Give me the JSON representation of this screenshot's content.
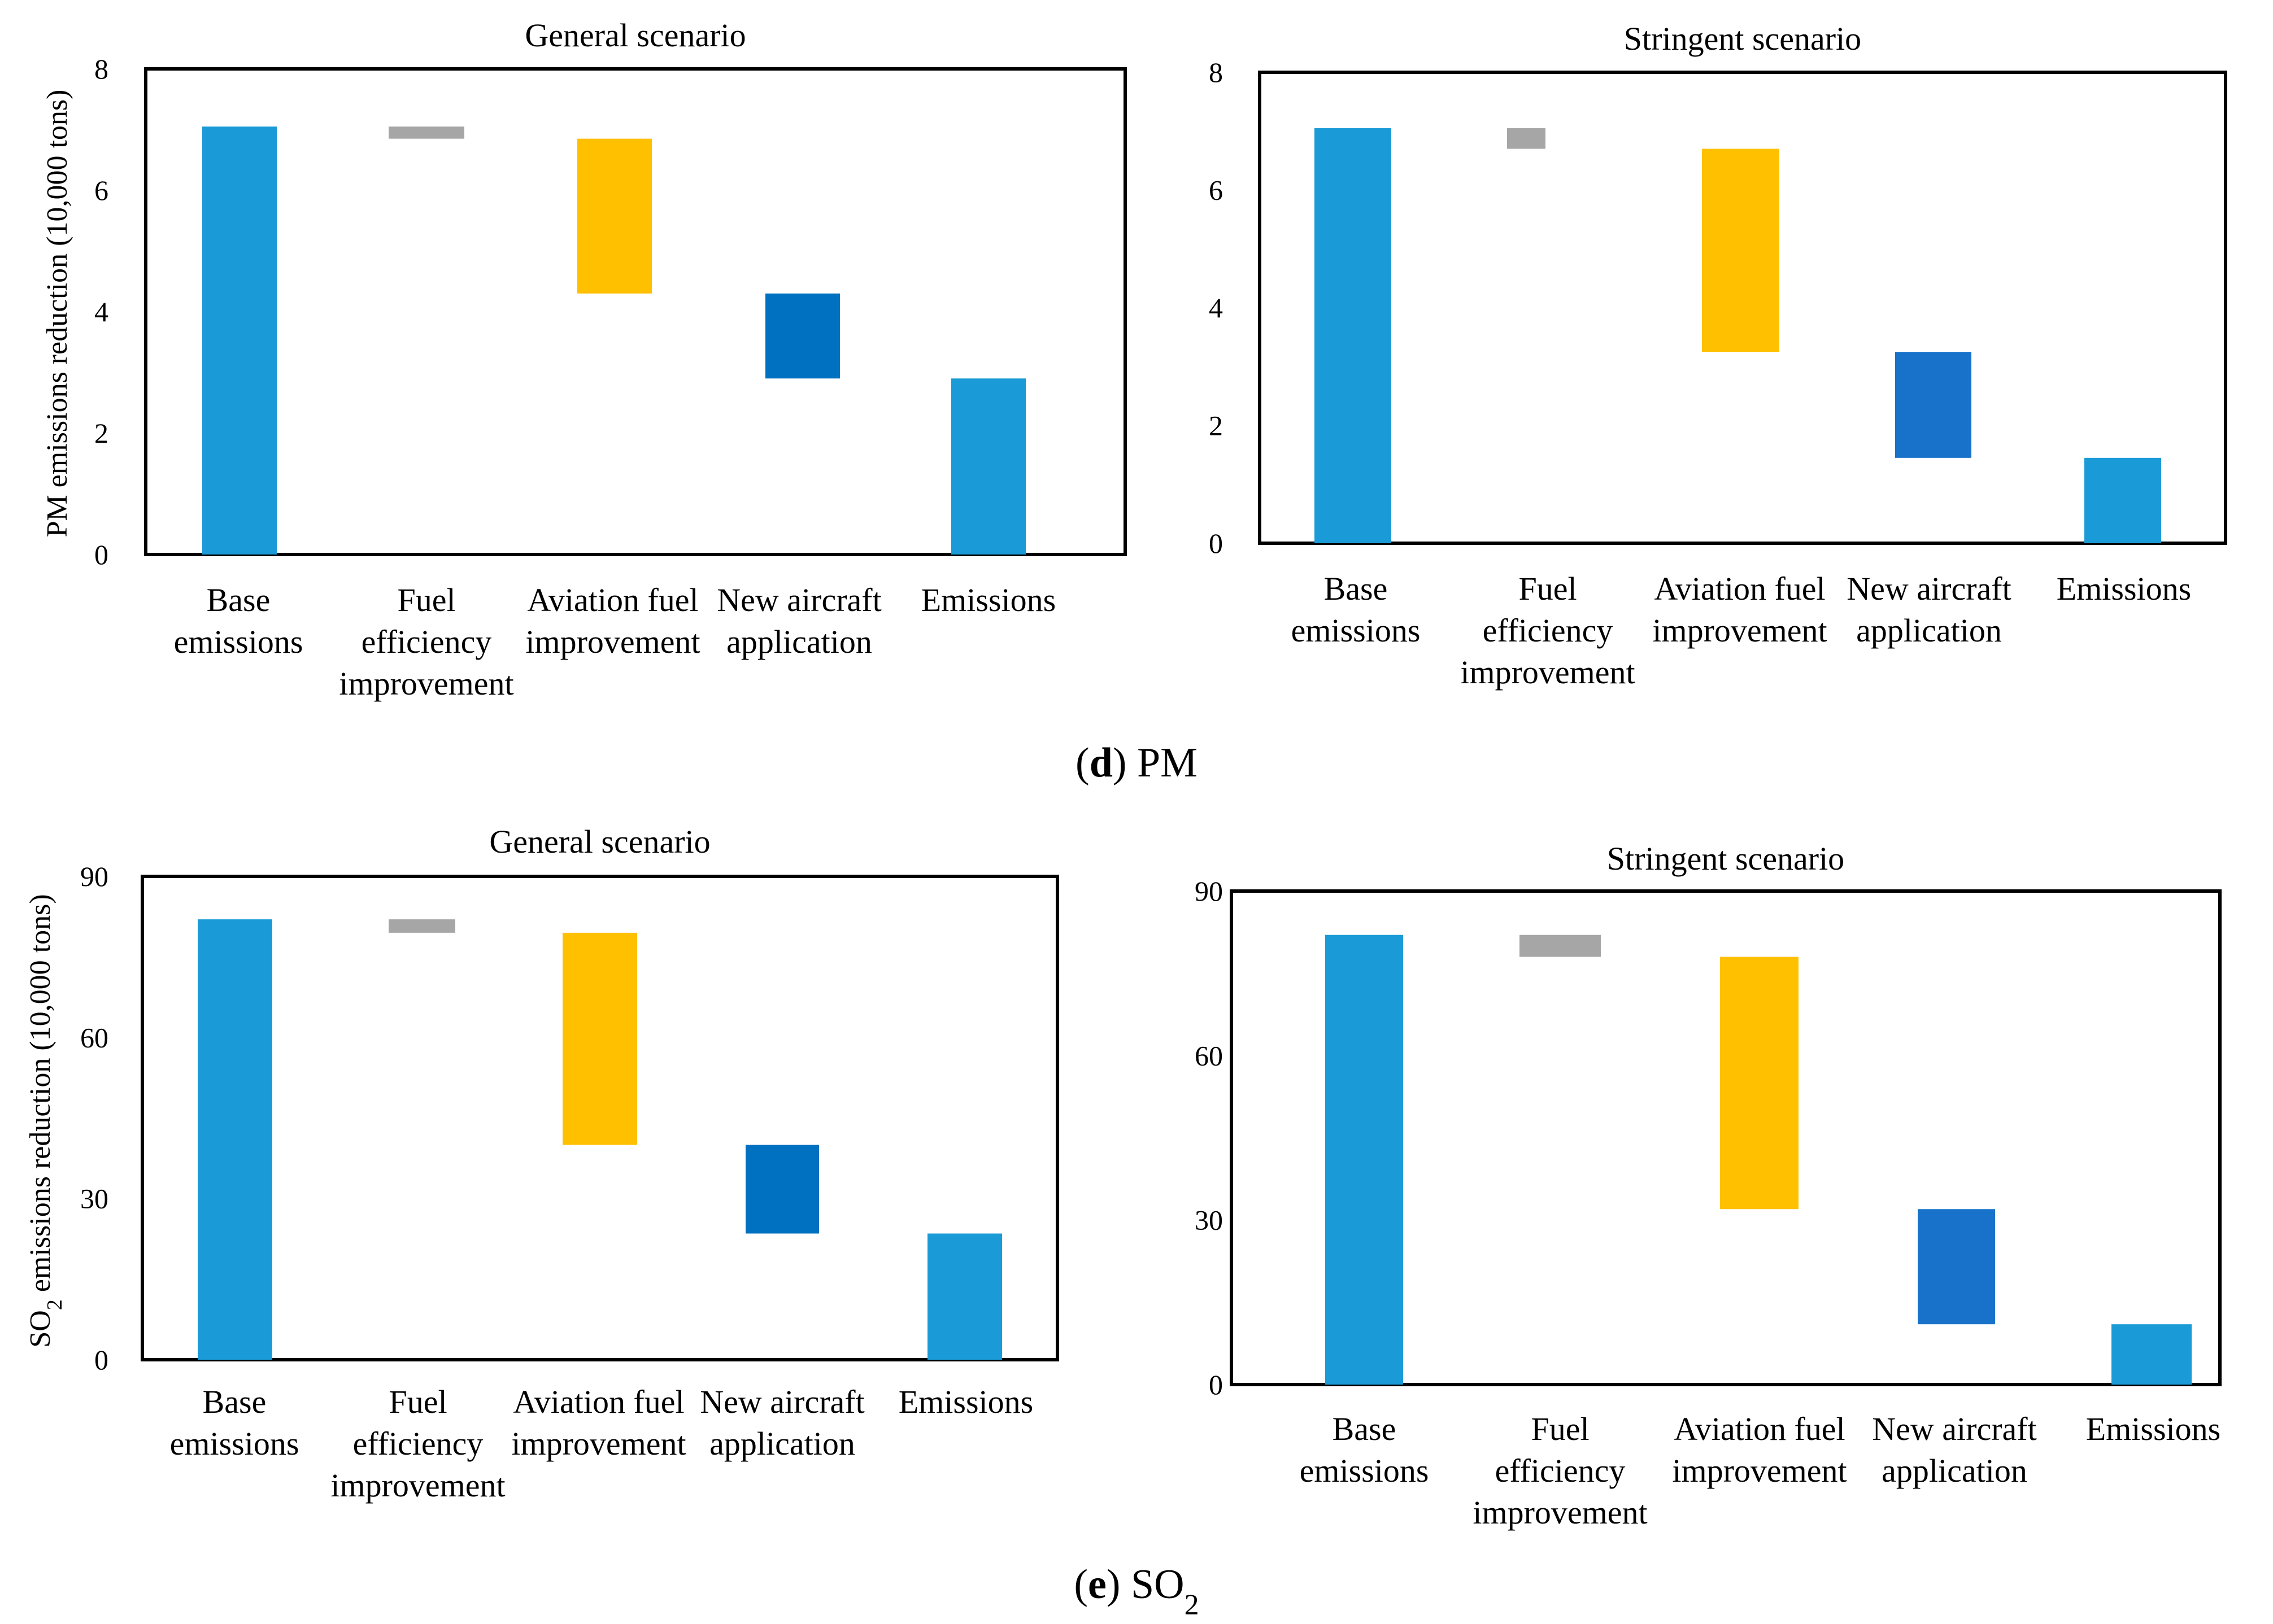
{
  "colors": {
    "base": "#1a9bd7",
    "fuel_efficiency": "#a6a6a6",
    "aviation_fuel": "#ffc000",
    "new_aircraft_general": "#0070c0",
    "new_aircraft_stringent": "#1872ca",
    "emissions": "#1a9bd7"
  },
  "captions": {
    "pm": {
      "letter": "d",
      "text": " PM"
    },
    "so2": {
      "letter": "e",
      "text": " SO",
      "sub": "2"
    }
  },
  "ylabels": {
    "pm": "PM emissions reduction (10,000 tons)",
    "so2_prefix": "SO",
    "so2_sub": "2",
    "so2_suffix": " emissions reduction (10,000 tons)"
  },
  "chart_data": [
    {
      "id": "pm_general",
      "type": "bar",
      "subtype": "waterfall",
      "title": "General scenario",
      "ylabel": "PM emissions reduction (10,000 tons)",
      "ylim": [
        0,
        8
      ],
      "yticks": [
        "0",
        "2",
        "4",
        "6",
        "8"
      ],
      "categories": [
        [
          "Base",
          "emissions"
        ],
        [
          "Fuel",
          "efficiency",
          "improvement"
        ],
        [
          "Aviation fuel",
          "improvement"
        ],
        [
          "New aircraft",
          "application"
        ],
        [
          "Emissions"
        ]
      ],
      "bars": [
        {
          "from": 0,
          "to": 7.05,
          "color": "base"
        },
        {
          "from": 6.85,
          "to": 7.05,
          "color": "fuel_efficiency"
        },
        {
          "from": 4.3,
          "to": 6.85,
          "color": "aviation_fuel"
        },
        {
          "from": 2.9,
          "to": 4.3,
          "color": "new_aircraft_general"
        },
        {
          "from": 0,
          "to": 2.9,
          "color": "emissions"
        }
      ]
    },
    {
      "id": "pm_stringent",
      "type": "bar",
      "subtype": "waterfall",
      "title": "Stringent scenario",
      "ylim": [
        0,
        8
      ],
      "yticks": [
        "0",
        "2",
        "4",
        "6",
        "8"
      ],
      "categories": [
        [
          "Base",
          "emissions"
        ],
        [
          "Fuel",
          "efficiency",
          "improvement"
        ],
        [
          "Aviation fuel",
          "improvement"
        ],
        [
          "New aircraft",
          "application"
        ],
        [
          "Emissions"
        ]
      ],
      "bars": [
        {
          "from": 0,
          "to": 7.05,
          "color": "base"
        },
        {
          "from": 6.7,
          "to": 7.05,
          "color": "fuel_efficiency"
        },
        {
          "from": 3.25,
          "to": 6.7,
          "color": "aviation_fuel"
        },
        {
          "from": 1.45,
          "to": 3.25,
          "color": "new_aircraft_stringent"
        },
        {
          "from": 0,
          "to": 1.45,
          "color": "emissions"
        }
      ]
    },
    {
      "id": "so2_general",
      "type": "bar",
      "subtype": "waterfall",
      "title": "General scenario",
      "ylabel": "SO2 emissions reduction (10,000 tons)",
      "ylim": [
        0,
        90
      ],
      "yticks": [
        "0",
        "30",
        "60",
        "90"
      ],
      "categories": [
        [
          "Base",
          "emissions"
        ],
        [
          "Fuel",
          "efficiency",
          "improvement"
        ],
        [
          "Aviation fuel",
          "improvement"
        ],
        [
          "New aircraft",
          "application"
        ],
        [
          "Emissions"
        ]
      ],
      "bars": [
        {
          "from": 0,
          "to": 82,
          "color": "base"
        },
        {
          "from": 79.5,
          "to": 82,
          "color": "fuel_efficiency"
        },
        {
          "from": 40,
          "to": 79.5,
          "color": "aviation_fuel"
        },
        {
          "from": 23.5,
          "to": 40,
          "color": "new_aircraft_general"
        },
        {
          "from": 0,
          "to": 23.5,
          "color": "emissions"
        }
      ]
    },
    {
      "id": "so2_stringent",
      "type": "bar",
      "subtype": "waterfall",
      "title": "Stringent scenario",
      "ylim": [
        0,
        90
      ],
      "yticks": [
        "0",
        "30",
        "60",
        "90"
      ],
      "categories": [
        [
          "Base",
          "emissions"
        ],
        [
          "Fuel",
          "efficiency",
          "improvement"
        ],
        [
          "Aviation fuel",
          "improvement"
        ],
        [
          "New aircraft",
          "application"
        ],
        [
          "Emissions"
        ]
      ],
      "bars": [
        {
          "from": 0,
          "to": 82,
          "color": "base"
        },
        {
          "from": 78,
          "to": 82,
          "color": "fuel_efficiency"
        },
        {
          "from": 32,
          "to": 78,
          "color": "aviation_fuel"
        },
        {
          "from": 11,
          "to": 32,
          "color": "new_aircraft_stringent"
        },
        {
          "from": 0,
          "to": 11,
          "color": "emissions"
        }
      ]
    }
  ]
}
